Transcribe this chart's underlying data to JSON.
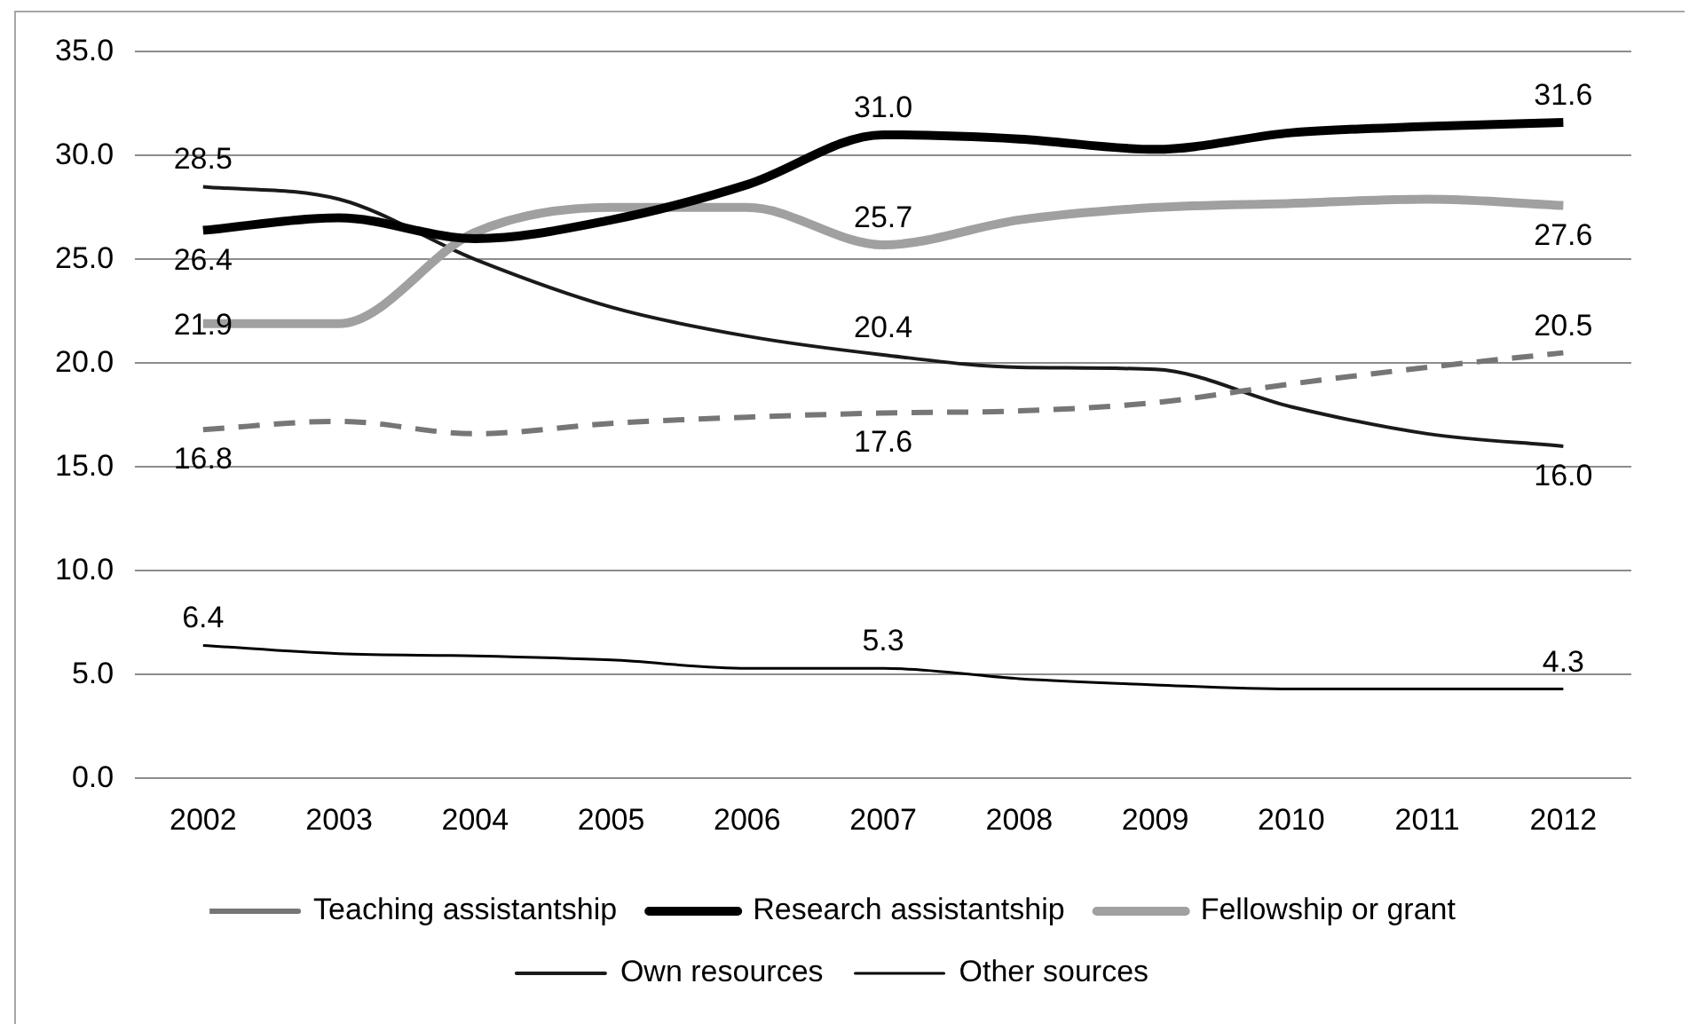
{
  "chart_data": {
    "type": "line",
    "categories": [
      "2002",
      "2003",
      "2004",
      "2005",
      "2006",
      "2007",
      "2008",
      "2009",
      "2010",
      "2011",
      "2012"
    ],
    "series": [
      {
        "name": "Teaching assistantship",
        "color": "#767676",
        "line_style": "dashed",
        "values": [
          16.8,
          17.2,
          16.6,
          17.1,
          17.4,
          17.6,
          17.7,
          18.1,
          19.0,
          19.8,
          20.5
        ],
        "value_labels": [
          "16.8",
          null,
          null,
          null,
          null,
          "17.6",
          null,
          null,
          null,
          null,
          "20.5"
        ]
      },
      {
        "name": "Research assistantship",
        "color": "#000000",
        "values": [
          26.4,
          27.0,
          26.0,
          26.9,
          28.6,
          31.0,
          30.8,
          30.3,
          31.1,
          31.4,
          31.6
        ],
        "value_labels": [
          "26.4",
          null,
          null,
          null,
          null,
          "31.0",
          null,
          null,
          null,
          null,
          "31.6"
        ]
      },
      {
        "name": "Fellowship or grant",
        "color": "#a0a0a0",
        "values": [
          21.9,
          21.9,
          26.3,
          27.5,
          27.5,
          25.7,
          26.9,
          27.5,
          27.7,
          27.9,
          27.6
        ],
        "value_labels": [
          "21.9",
          null,
          null,
          null,
          null,
          "25.7",
          null,
          null,
          null,
          null,
          "27.6"
        ]
      },
      {
        "name": "Own resources",
        "color": "#1a1a1a",
        "values": [
          28.5,
          27.9,
          25.0,
          22.7,
          21.3,
          20.4,
          19.8,
          19.7,
          17.9,
          16.6,
          16.0
        ],
        "value_labels": [
          "28.5",
          null,
          null,
          null,
          null,
          "20.4",
          null,
          null,
          null,
          null,
          "16.0"
        ]
      },
      {
        "name": "Other sources",
        "color": "#000000",
        "values": [
          6.4,
          6.0,
          5.9,
          5.7,
          5.3,
          5.3,
          4.8,
          4.5,
          4.3,
          4.3,
          4.3
        ],
        "value_labels": [
          "6.4",
          null,
          null,
          null,
          null,
          "5.3",
          null,
          null,
          null,
          null,
          "4.3"
        ]
      }
    ],
    "ylim": [
      0,
      35
    ],
    "yticks": [
      {
        "value": 0,
        "label": "0.0"
      },
      {
        "value": 5,
        "label": "5.0"
      },
      {
        "value": 10,
        "label": "10.0"
      },
      {
        "value": 15,
        "label": "15.0"
      },
      {
        "value": 20,
        "label": "20.0"
      },
      {
        "value": 25,
        "label": "25.0"
      },
      {
        "value": 30,
        "label": "30.0"
      },
      {
        "value": 35,
        "label": "35.0"
      }
    ],
    "grid": "y",
    "legend": "bottom",
    "marker": "none"
  }
}
